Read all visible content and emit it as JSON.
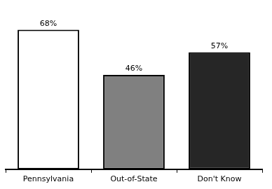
{
  "chart_data": {
    "type": "bar",
    "categories": [
      "Pennsylvania",
      "Out-of-State",
      "Don't Know"
    ],
    "values": [
      68,
      46,
      57
    ],
    "value_labels": [
      "68%",
      "46%",
      "57%"
    ],
    "colors": [
      "#ffffff",
      "#808080",
      "#262626"
    ],
    "ylim": [
      0,
      75
    ],
    "data_labels": true,
    "tick_labels": "x",
    "grid": false
  }
}
